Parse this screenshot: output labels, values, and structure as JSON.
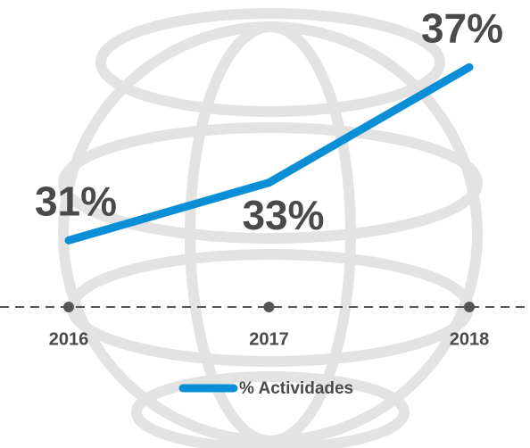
{
  "chart_data": {
    "type": "line",
    "categories": [
      "2016",
      "2017",
      "2018"
    ],
    "series": [
      {
        "name": "% Actividades",
        "color": "#0a8ed6",
        "values": [
          31,
          33,
          37
        ],
        "value_labels": [
          "31%",
          "33%",
          "37%"
        ]
      }
    ],
    "ylim": [
      29,
      38
    ]
  }
}
